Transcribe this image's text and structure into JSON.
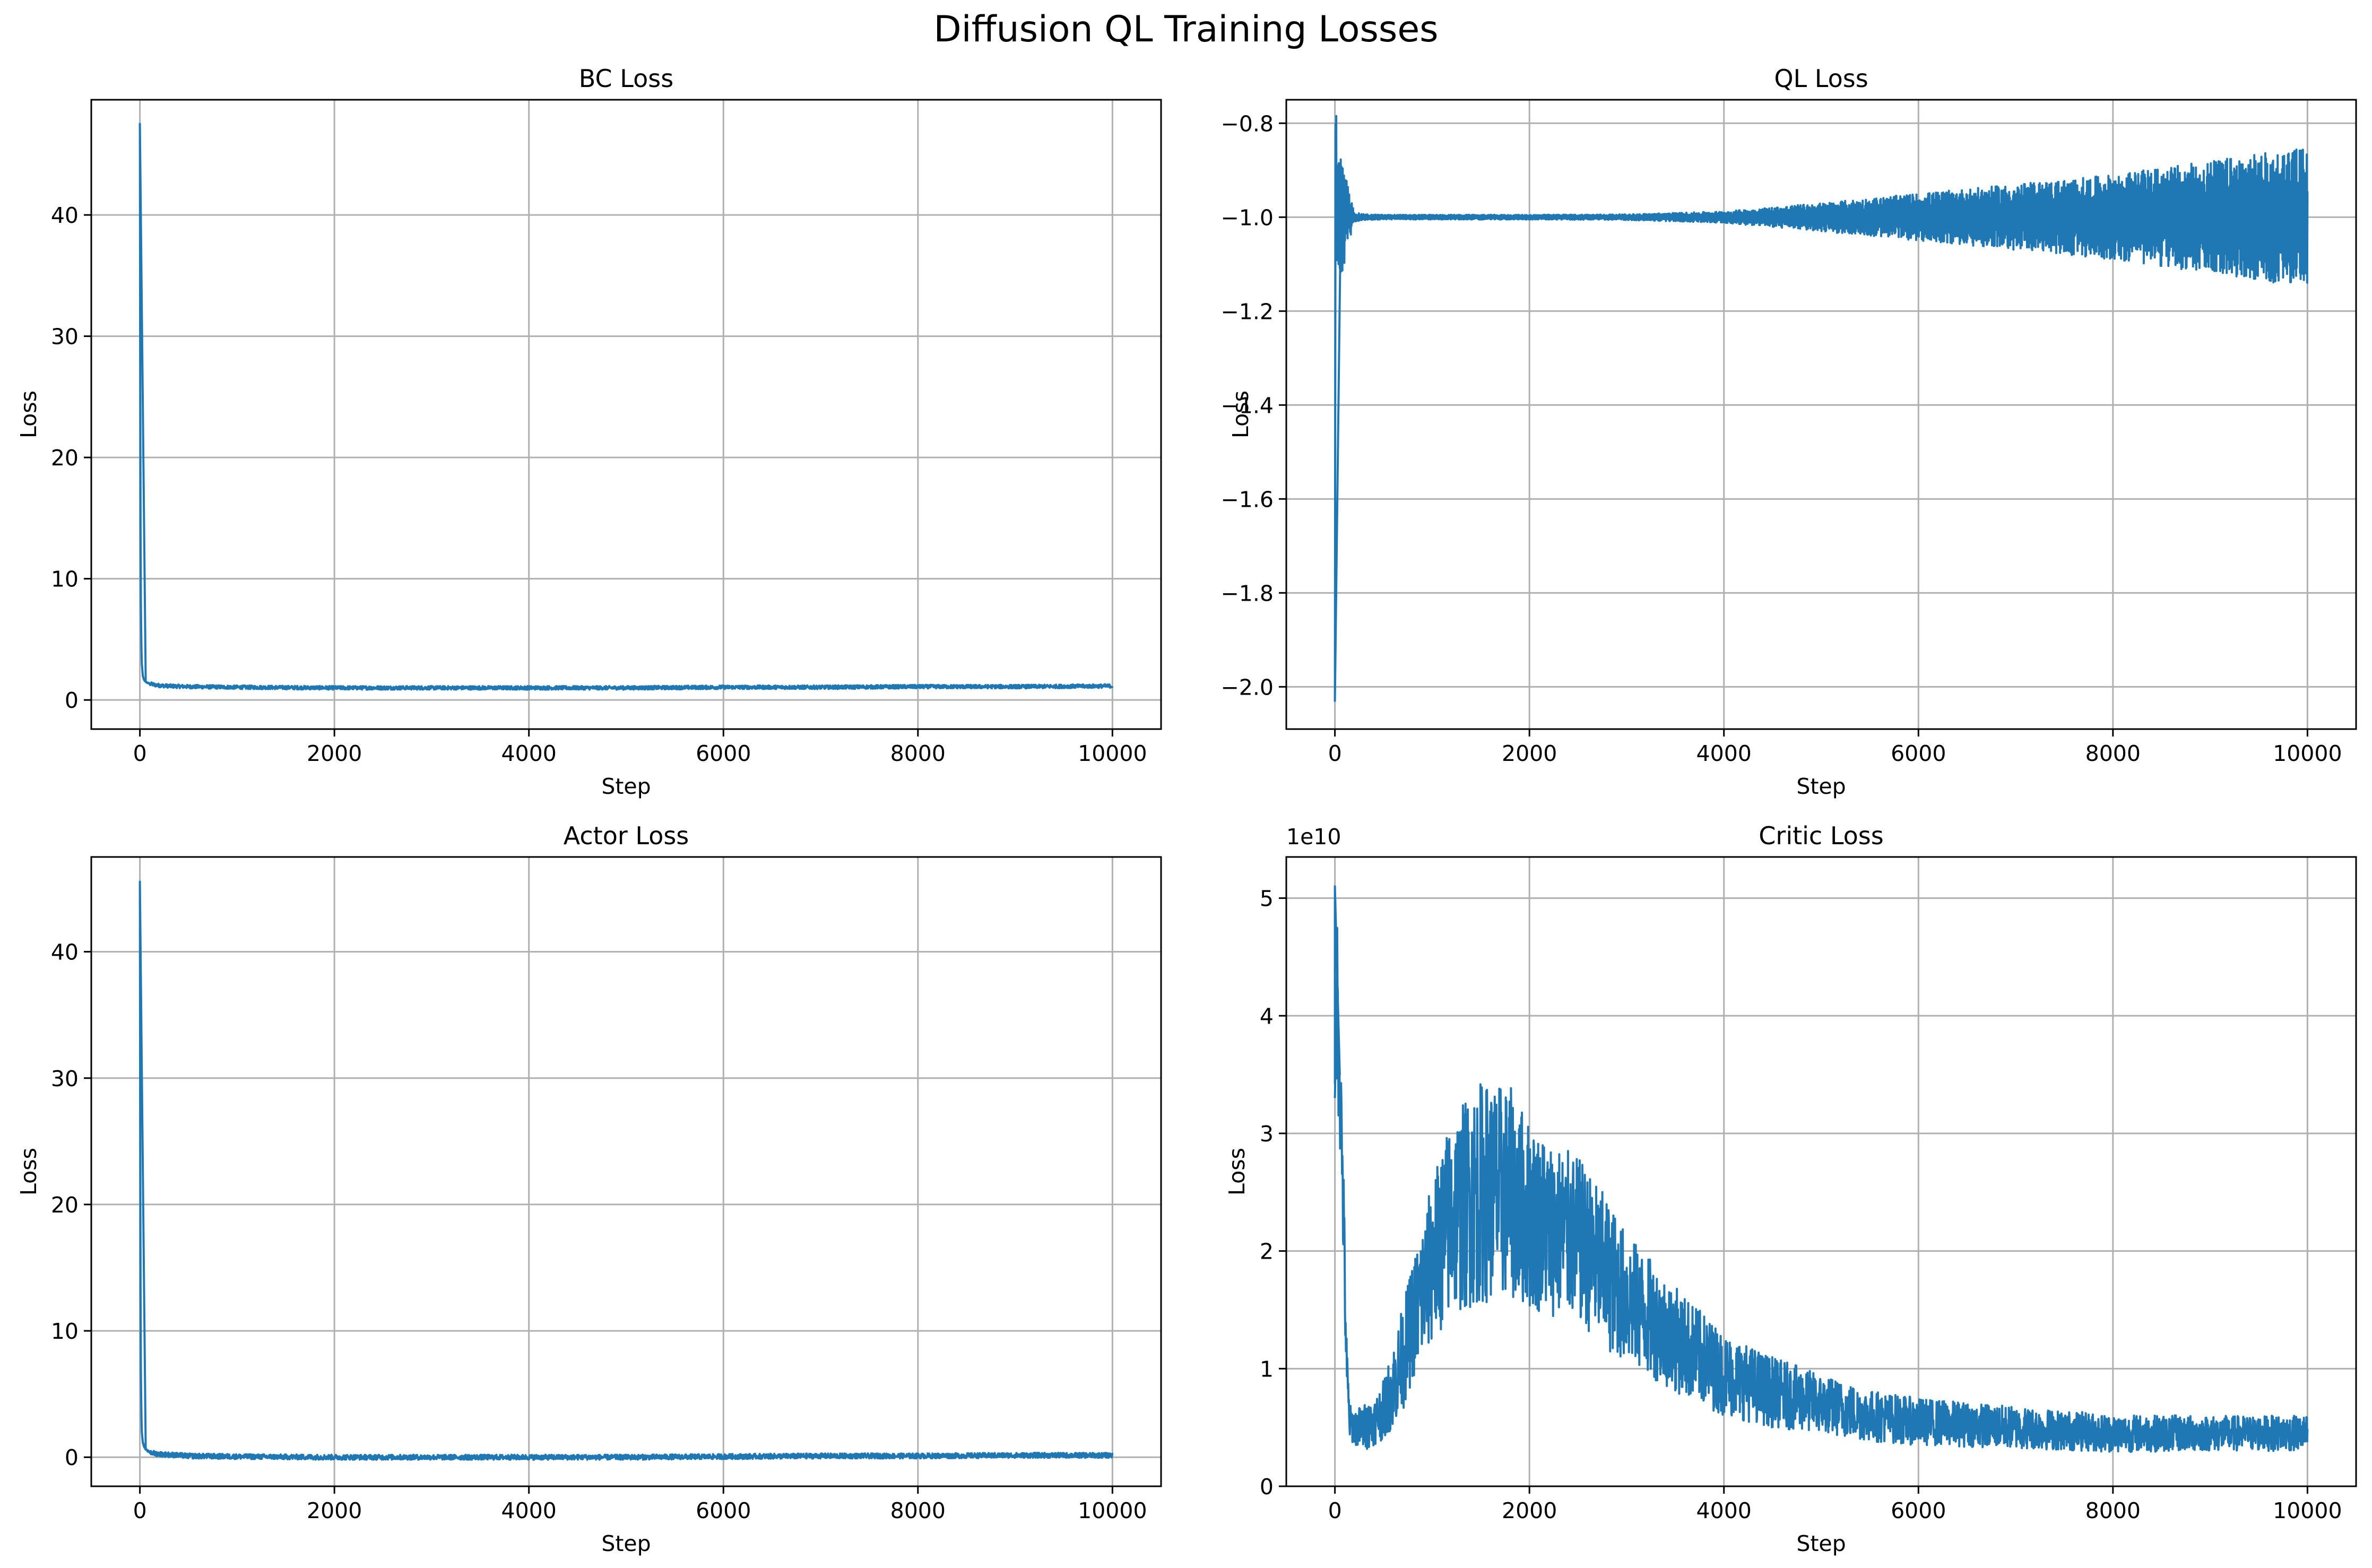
{
  "figure": {
    "title": "Diffusion QL Training Losses"
  },
  "colors": {
    "series": "#1f77b4",
    "grid": "#b0b0b0",
    "frame": "#000000",
    "background": "#ffffff"
  },
  "chart_data": [
    {
      "type": "line",
      "title": "BC Loss",
      "xlabel": "Step",
      "ylabel": "Loss",
      "offset_text": "",
      "xlim": [
        -500,
        10500
      ],
      "ylim": [
        -2.4,
        49.5
      ],
      "xticks": [
        0,
        2000,
        4000,
        6000,
        8000,
        10000
      ],
      "xtick_labels": [
        "0",
        "2000",
        "4000",
        "6000",
        "8000",
        "10000"
      ],
      "yticks": [
        0,
        10,
        20,
        30,
        40
      ],
      "ytick_labels": [
        "0",
        "10",
        "20",
        "30",
        "40"
      ],
      "grid": true,
      "series": [
        {
          "x": [
            0,
            3,
            6,
            10,
            15,
            20,
            30,
            40,
            60,
            80,
            100,
            150,
            200,
            300,
            500,
            1000,
            2000,
            3000,
            4000,
            5000,
            6000,
            7000,
            8000,
            9000,
            10000
          ],
          "y": [
            47.5,
            30.0,
            15.0,
            8.0,
            4.5,
            3.0,
            2.0,
            1.7,
            1.5,
            1.4,
            1.35,
            1.25,
            1.2,
            1.15,
            1.1,
            1.05,
            1.0,
            1.0,
            1.0,
            1.0,
            1.05,
            1.05,
            1.1,
            1.1,
            1.15
          ],
          "noise": 0.15
        }
      ]
    },
    {
      "type": "line",
      "title": "QL Loss",
      "xlabel": "Step",
      "ylabel": "Loss",
      "offset_text": "",
      "xlim": [
        -500,
        10500
      ],
      "ylim": [
        -2.09,
        -0.75
      ],
      "xticks": [
        0,
        2000,
        4000,
        6000,
        8000,
        10000
      ],
      "xtick_labels": [
        "0",
        "2000",
        "4000",
        "6000",
        "8000",
        "10000"
      ],
      "yticks": [
        -2.0,
        -1.8,
        -1.6,
        -1.4,
        -1.2,
        -1.0,
        -0.8
      ],
      "ytick_labels": [
        "−2.0",
        "−1.8",
        "−1.6",
        "−1.4",
        "−1.2",
        "−1.0",
        "−0.8"
      ],
      "grid": true,
      "series": [
        {
          "x": [
            0,
            4,
            8,
            12,
            20,
            40,
            60,
            100,
            150,
            200,
            300,
            500,
            1000,
            2000,
            3000,
            4000,
            5000,
            6000,
            7000,
            8000,
            9000,
            10000
          ],
          "y": [
            -2.03,
            -1.2,
            -0.8,
            -0.9,
            -1.0,
            -1.0,
            -1.0,
            -1.0,
            -1.0,
            -1.0,
            -1.0,
            -1.0,
            -1.0,
            -1.0,
            -1.0,
            -1.0,
            -1.0,
            -1.0,
            -1.0,
            -1.0,
            -1.0,
            -1.0
          ],
          "spread": [
            0.0,
            0.15,
            0.15,
            0.14,
            0.14,
            0.14,
            0.13,
            0.1,
            0.05,
            0.01,
            0.006,
            0.005,
            0.005,
            0.005,
            0.006,
            0.012,
            0.03,
            0.05,
            0.07,
            0.09,
            0.12,
            0.15
          ]
        }
      ]
    },
    {
      "type": "line",
      "title": "Actor Loss",
      "xlabel": "Step",
      "ylabel": "Loss",
      "offset_text": "",
      "xlim": [
        -500,
        10500
      ],
      "ylim": [
        -2.3,
        47.5
      ],
      "xticks": [
        0,
        2000,
        4000,
        6000,
        8000,
        10000
      ],
      "xtick_labels": [
        "0",
        "2000",
        "4000",
        "6000",
        "8000",
        "10000"
      ],
      "yticks": [
        0,
        10,
        20,
        30,
        40
      ],
      "ytick_labels": [
        "0",
        "10",
        "20",
        "30",
        "40"
      ],
      "grid": true,
      "series": [
        {
          "x": [
            0,
            3,
            6,
            10,
            15,
            20,
            30,
            40,
            60,
            80,
            100,
            150,
            200,
            300,
            500,
            1000,
            2000,
            3000,
            4000,
            5000,
            6000,
            7000,
            8000,
            9000,
            10000
          ],
          "y": [
            45.5,
            28.0,
            14.0,
            7.0,
            3.5,
            2.0,
            1.2,
            0.9,
            0.6,
            0.5,
            0.4,
            0.3,
            0.25,
            0.2,
            0.1,
            0.05,
            0.0,
            0.0,
            0.0,
            0.0,
            0.05,
            0.1,
            0.1,
            0.15,
            0.15
          ],
          "noise": 0.2
        }
      ]
    },
    {
      "type": "line",
      "title": "Critic Loss",
      "xlabel": "Step",
      "ylabel": "Loss",
      "offset_text": "1e10",
      "xlim": [
        -500,
        10500
      ],
      "ylim": [
        0,
        5.35
      ],
      "xticks": [
        0,
        2000,
        4000,
        6000,
        8000,
        10000
      ],
      "xtick_labels": [
        "0",
        "2000",
        "4000",
        "6000",
        "8000",
        "10000"
      ],
      "yticks": [
        0,
        1,
        2,
        3,
        4,
        5
      ],
      "ytick_labels": [
        "0",
        "1",
        "2",
        "3",
        "4",
        "5"
      ],
      "grid": true,
      "series": [
        {
          "x": [
            0,
            20,
            50,
            80,
            100,
            120,
            150,
            200,
            300,
            400,
            500,
            600,
            700,
            800,
            1000,
            1200,
            1500,
            1800,
            2000,
            2200,
            2500,
            2800,
            3000,
            3500,
            4000,
            4500,
            5000,
            5500,
            6000,
            7000,
            8000,
            9000,
            10000
          ],
          "y": [
            3.3,
            4.2,
            3.5,
            2.6,
            1.8,
            1.0,
            0.55,
            0.5,
            0.5,
            0.55,
            0.65,
            0.85,
            1.1,
            1.4,
            1.9,
            2.3,
            2.5,
            2.5,
            2.3,
            2.2,
            2.1,
            1.8,
            1.6,
            1.25,
            0.95,
            0.8,
            0.7,
            0.6,
            0.55,
            0.5,
            0.45,
            0.45,
            0.45
          ],
          "noise": [
            0.4,
            0.8,
            0.6,
            0.5,
            0.4,
            0.3,
            0.15,
            0.15,
            0.2,
            0.2,
            0.25,
            0.35,
            0.45,
            0.5,
            0.7,
            0.85,
            0.95,
            0.9,
            0.8,
            0.75,
            0.7,
            0.65,
            0.55,
            0.45,
            0.35,
            0.3,
            0.25,
            0.22,
            0.2,
            0.18,
            0.16,
            0.15,
            0.15
          ],
          "peak": [
            0,
            5.1
          ]
        }
      ]
    }
  ]
}
